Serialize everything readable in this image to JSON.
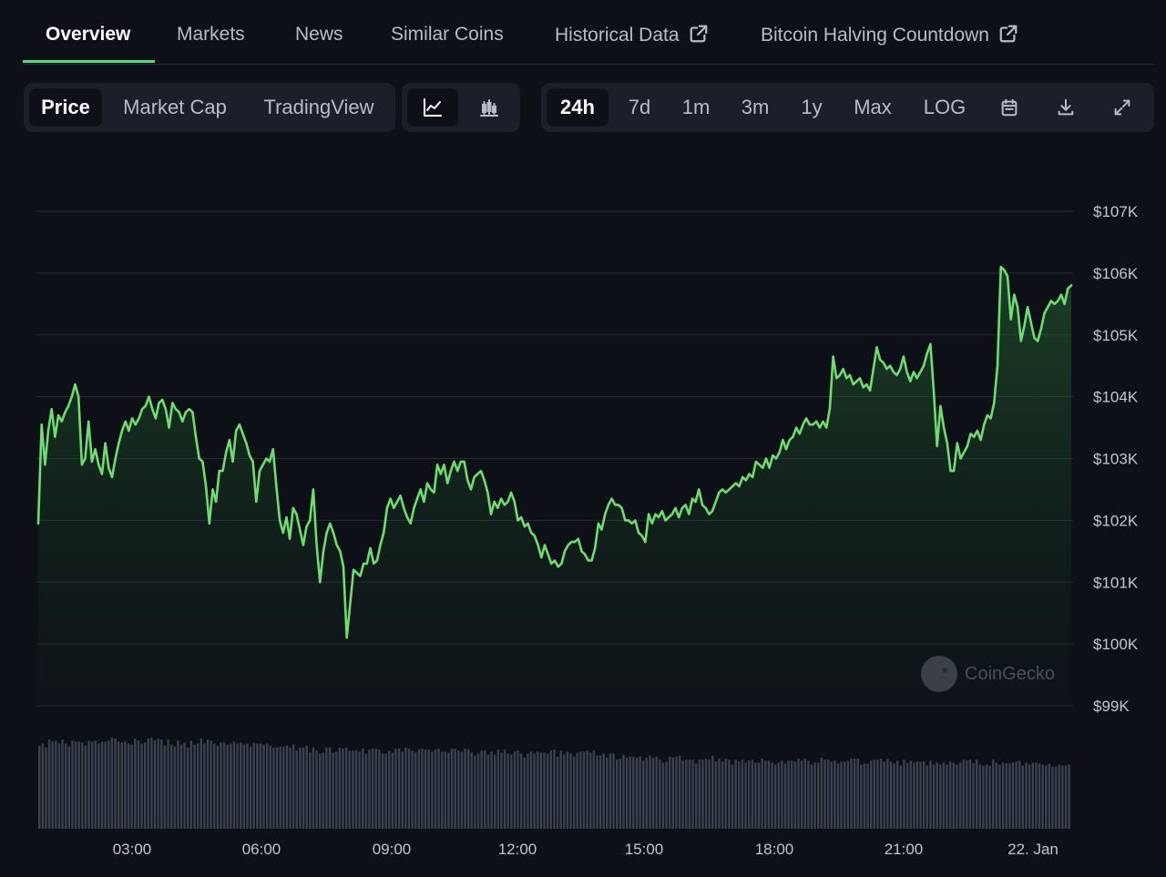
{
  "tabs": [
    {
      "label": "Overview",
      "active": true
    },
    {
      "label": "Markets"
    },
    {
      "label": "News"
    },
    {
      "label": "Similar Coins"
    },
    {
      "label": "Historical Data",
      "icon": "external-link-icon"
    },
    {
      "label": "Bitcoin Halving Countdown",
      "icon": "external-link-icon"
    }
  ],
  "view_toggle": {
    "buttons": [
      {
        "label": "Price",
        "active": true
      },
      {
        "label": "Market Cap"
      },
      {
        "label": "TradingView"
      }
    ]
  },
  "chart_type_toggle": {
    "buttons": [
      {
        "icon": "line-chart-icon",
        "active": true
      },
      {
        "icon": "candlestick-chart-icon"
      }
    ]
  },
  "range_toggle": {
    "buttons": [
      {
        "label": "24h",
        "active": true
      },
      {
        "label": "7d"
      },
      {
        "label": "1m"
      },
      {
        "label": "3m"
      },
      {
        "label": "1y"
      },
      {
        "label": "Max"
      },
      {
        "label": "LOG"
      }
    ],
    "icons": [
      "calendar-icon",
      "download-icon",
      "expand-icon"
    ]
  },
  "watermark": "CoinGecko",
  "colors": {
    "accent": "#4ade80",
    "line": "#6fdc71",
    "volume": "#3a4250",
    "background": "#0d1117"
  },
  "chart_data": {
    "type": "area",
    "x_labels": [
      "03:00",
      "06:00",
      "09:00",
      "12:00",
      "15:00",
      "18:00",
      "21:00",
      "22. Jan"
    ],
    "y_tick_labels": [
      "$107K",
      "$106K",
      "$105K",
      "$104K",
      "$103K",
      "$102K",
      "$101K",
      "$100K",
      "$99K"
    ],
    "ylim": [
      99000,
      107000
    ],
    "grid": true,
    "series": [
      {
        "values": [
          101950,
          103550,
          102900,
          103450,
          103800,
          103350,
          103700,
          103600,
          103750,
          103850,
          104000,
          104200,
          104000,
          102900,
          103000,
          103600,
          102950,
          103150,
          102900,
          102750,
          103250,
          102850,
          102700,
          103000,
          103250,
          103450,
          103600,
          103450,
          103650,
          103550,
          103650,
          103800,
          103850,
          104000,
          103800,
          103650,
          103900,
          103950,
          103800,
          103500,
          103900,
          103800,
          103750,
          103600,
          103750,
          103800,
          103750,
          103350,
          103000,
          102950,
          102550,
          101950,
          102500,
          102300,
          102800,
          102800,
          103100,
          103300,
          102950,
          103450,
          103550,
          103400,
          103250,
          103050,
          102950,
          102300,
          102800,
          102900,
          103000,
          102950,
          103150,
          102550,
          102000,
          101800,
          102050,
          101700,
          102200,
          102100,
          101850,
          101600,
          101900,
          102000,
          102500,
          101600,
          101000,
          101500,
          101800,
          101950,
          101800,
          101600,
          101500,
          101250,
          100100,
          100650,
          101200,
          101150,
          101100,
          101300,
          101300,
          101550,
          101300,
          101350,
          101600,
          101800,
          102200,
          102350,
          102200,
          102300,
          102400,
          102200,
          102050,
          101950,
          102200,
          102350,
          102500,
          102300,
          102600,
          102500,
          102450,
          102900,
          102750,
          102900,
          102600,
          102800,
          102950,
          102800,
          102950,
          102950,
          102650,
          102500,
          102700,
          102750,
          102800,
          102650,
          102450,
          102100,
          102300,
          102200,
          102350,
          102250,
          102300,
          102450,
          102300,
          102000,
          102050,
          101900,
          101950,
          101800,
          101750,
          101600,
          101400,
          101600,
          101450,
          101300,
          101350,
          101250,
          101300,
          101500,
          101600,
          101650,
          101650,
          101700,
          101500,
          101450,
          101350,
          101350,
          101550,
          101950,
          101850,
          102100,
          102250,
          102350,
          102250,
          102250,
          102200,
          102000,
          102000,
          101950,
          102000,
          101800,
          101750,
          101650,
          102100,
          101950,
          102100,
          102050,
          102150,
          102000,
          102050,
          102100,
          102200,
          102050,
          102200,
          102250,
          102100,
          102350,
          102300,
          102500,
          102250,
          102200,
          102100,
          102150,
          102300,
          102450,
          102500,
          102450,
          102500,
          102550,
          102600,
          102550,
          102700,
          102650,
          102750,
          102700,
          102950,
          102900,
          102850,
          103000,
          102850,
          103050,
          103000,
          103100,
          103300,
          103150,
          103300,
          103350,
          103500,
          103400,
          103550,
          103650,
          103550,
          103550,
          103600,
          103500,
          103600,
          103500,
          103800,
          104650,
          104300,
          104350,
          104450,
          104300,
          104350,
          104200,
          104250,
          104300,
          104150,
          104200,
          104100,
          104450,
          104800,
          104600,
          104550,
          104450,
          104500,
          104400,
          104350,
          104450,
          104650,
          104400,
          104250,
          104400,
          104300,
          104400,
          104500,
          104700,
          104850,
          104100,
          103200,
          103850,
          103500,
          103250,
          102800,
          102800,
          103250,
          103000,
          103100,
          103200,
          103400,
          103350,
          103450,
          103300,
          103550,
          103700,
          103650,
          103900,
          104500,
          106100,
          106050,
          105950,
          105250,
          105650,
          105450,
          104900,
          105150,
          105450,
          105200,
          104950,
          104900,
          105100,
          105350,
          105450,
          105550,
          105500,
          105550,
          105650,
          105500,
          105750,
          105800
        ],
        "volume_relative": [
          0.83,
          0.85,
          0.81,
          0.89,
          0.87,
          0.88,
          0.85,
          0.89,
          0.85,
          0.82,
          0.88,
          0.87,
          0.87,
          0.86,
          0.83,
          0.88,
          0.87,
          0.88,
          0.85,
          0.87,
          0.87,
          0.88,
          0.91,
          0.9,
          0.87,
          0.86,
          0.87,
          0.85,
          0.84,
          0.9,
          0.88,
          0.85,
          0.86,
          0.9,
          0.91,
          0.88,
          0.9,
          0.89,
          0.83,
          0.89,
          0.84,
          0.82,
          0.88,
          0.84,
          0.86,
          0.81,
          0.88,
          0.84,
          0.85,
          0.9,
          0.85,
          0.89,
          0.88,
          0.85,
          0.83,
          0.86,
          0.86,
          0.84,
          0.85,
          0.87,
          0.85,
          0.86,
          0.84,
          0.85,
          0.82,
          0.86,
          0.85,
          0.85,
          0.84,
          0.85,
          0.83,
          0.81,
          0.81,
          0.82,
          0.82,
          0.83,
          0.81,
          0.84,
          0.78,
          0.81,
          0.81,
          0.83,
          0.76,
          0.81,
          0.78,
          0.75,
          0.76,
          0.81,
          0.81,
          0.76,
          0.77,
          0.81,
          0.8,
          0.81,
          0.78,
          0.78,
          0.78,
          0.77,
          0.8,
          0.75,
          0.79,
          0.8,
          0.8,
          0.79,
          0.75,
          0.75,
          0.78,
          0.76,
          0.8,
          0.8,
          0.77,
          0.81,
          0.8,
          0.78,
          0.76,
          0.79,
          0.8,
          0.79,
          0.79,
          0.77,
          0.79,
          0.8,
          0.77,
          0.77,
          0.76,
          0.8,
          0.8,
          0.78,
          0.77,
          0.8,
          0.79,
          0.76,
          0.73,
          0.75,
          0.78,
          0.78,
          0.74,
          0.77,
          0.74,
          0.79,
          0.76,
          0.79,
          0.75,
          0.74,
          0.77,
          0.78,
          0.75,
          0.71,
          0.75,
          0.77,
          0.75,
          0.77,
          0.76,
          0.76,
          0.75,
          0.78,
          0.79,
          0.72,
          0.78,
          0.74,
          0.77,
          0.75,
          0.72,
          0.76,
          0.77,
          0.77,
          0.78,
          0.76,
          0.78,
          0.73,
          0.73,
          0.75,
          0.71,
          0.75,
          0.75,
          0.69,
          0.7,
          0.74,
          0.71,
          0.72,
          0.72,
          0.71,
          0.72,
          0.68,
          0.71,
          0.73,
          0.71,
          0.72,
          0.69,
          0.66,
          0.67,
          0.72,
          0.71,
          0.72,
          0.73,
          0.68,
          0.69,
          0.69,
          0.69,
          0.65,
          0.69,
          0.69,
          0.7,
          0.69,
          0.73,
          0.67,
          0.7,
          0.67,
          0.7,
          0.69,
          0.64,
          0.69,
          0.67,
          0.69,
          0.66,
          0.68,
          0.69,
          0.66,
          0.66,
          0.7,
          0.68,
          0.68,
          0.66,
          0.64,
          0.66,
          0.68,
          0.65,
          0.68,
          0.68,
          0.67,
          0.7,
          0.68,
          0.7,
          0.68,
          0.64,
          0.66,
          0.66,
          0.71,
          0.69,
          0.69,
          0.67,
          0.68,
          0.65,
          0.67,
          0.67,
          0.68,
          0.7,
          0.7,
          0.7,
          0.64,
          0.65,
          0.65,
          0.68,
          0.69,
          0.69,
          0.7,
          0.67,
          0.7,
          0.67,
          0.65,
          0.68,
          0.63,
          0.69,
          0.66,
          0.68,
          0.66,
          0.67,
          0.67,
          0.67,
          0.63,
          0.68,
          0.64,
          0.66,
          0.64,
          0.66,
          0.64,
          0.67,
          0.66,
          0.64,
          0.66,
          0.69,
          0.68,
          0.69,
          0.65,
          0.69,
          0.64,
          0.63,
          0.64,
          0.63,
          0.69,
          0.66,
          0.64,
          0.66,
          0.65,
          0.65,
          0.66,
          0.67,
          0.68,
          0.63,
          0.66,
          0.64,
          0.66,
          0.66,
          0.65,
          0.64,
          0.63,
          0.65,
          0.62,
          0.62,
          0.64,
          0.63,
          0.63,
          0.64
        ]
      }
    ]
  }
}
